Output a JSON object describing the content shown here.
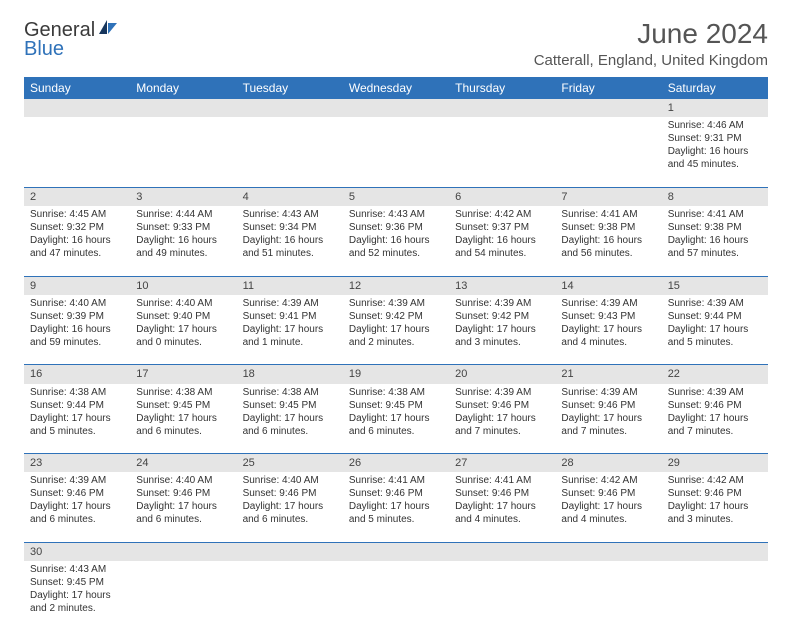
{
  "logo": {
    "text1": "General",
    "text2": "Blue"
  },
  "title": "June 2024",
  "location": "Catterall, England, United Kingdom",
  "colors": {
    "header_bg": "#2f72b9",
    "header_text": "#ffffff",
    "daynum_bg": "#e5e5e5",
    "row_border": "#2f72b9",
    "logo_blue": "#2f72b9",
    "text": "#333333"
  },
  "weekdays": [
    "Sunday",
    "Monday",
    "Tuesday",
    "Wednesday",
    "Thursday",
    "Friday",
    "Saturday"
  ],
  "weeks": [
    {
      "days": [
        null,
        null,
        null,
        null,
        null,
        null,
        {
          "n": "1",
          "sunrise": "Sunrise: 4:46 AM",
          "sunset": "Sunset: 9:31 PM",
          "daylight": "Daylight: 16 hours and 45 minutes."
        }
      ]
    },
    {
      "days": [
        {
          "n": "2",
          "sunrise": "Sunrise: 4:45 AM",
          "sunset": "Sunset: 9:32 PM",
          "daylight": "Daylight: 16 hours and 47 minutes."
        },
        {
          "n": "3",
          "sunrise": "Sunrise: 4:44 AM",
          "sunset": "Sunset: 9:33 PM",
          "daylight": "Daylight: 16 hours and 49 minutes."
        },
        {
          "n": "4",
          "sunrise": "Sunrise: 4:43 AM",
          "sunset": "Sunset: 9:34 PM",
          "daylight": "Daylight: 16 hours and 51 minutes."
        },
        {
          "n": "5",
          "sunrise": "Sunrise: 4:43 AM",
          "sunset": "Sunset: 9:36 PM",
          "daylight": "Daylight: 16 hours and 52 minutes."
        },
        {
          "n": "6",
          "sunrise": "Sunrise: 4:42 AM",
          "sunset": "Sunset: 9:37 PM",
          "daylight": "Daylight: 16 hours and 54 minutes."
        },
        {
          "n": "7",
          "sunrise": "Sunrise: 4:41 AM",
          "sunset": "Sunset: 9:38 PM",
          "daylight": "Daylight: 16 hours and 56 minutes."
        },
        {
          "n": "8",
          "sunrise": "Sunrise: 4:41 AM",
          "sunset": "Sunset: 9:38 PM",
          "daylight": "Daylight: 16 hours and 57 minutes."
        }
      ]
    },
    {
      "days": [
        {
          "n": "9",
          "sunrise": "Sunrise: 4:40 AM",
          "sunset": "Sunset: 9:39 PM",
          "daylight": "Daylight: 16 hours and 59 minutes."
        },
        {
          "n": "10",
          "sunrise": "Sunrise: 4:40 AM",
          "sunset": "Sunset: 9:40 PM",
          "daylight": "Daylight: 17 hours and 0 minutes."
        },
        {
          "n": "11",
          "sunrise": "Sunrise: 4:39 AM",
          "sunset": "Sunset: 9:41 PM",
          "daylight": "Daylight: 17 hours and 1 minute."
        },
        {
          "n": "12",
          "sunrise": "Sunrise: 4:39 AM",
          "sunset": "Sunset: 9:42 PM",
          "daylight": "Daylight: 17 hours and 2 minutes."
        },
        {
          "n": "13",
          "sunrise": "Sunrise: 4:39 AM",
          "sunset": "Sunset: 9:42 PM",
          "daylight": "Daylight: 17 hours and 3 minutes."
        },
        {
          "n": "14",
          "sunrise": "Sunrise: 4:39 AM",
          "sunset": "Sunset: 9:43 PM",
          "daylight": "Daylight: 17 hours and 4 minutes."
        },
        {
          "n": "15",
          "sunrise": "Sunrise: 4:39 AM",
          "sunset": "Sunset: 9:44 PM",
          "daylight": "Daylight: 17 hours and 5 minutes."
        }
      ]
    },
    {
      "days": [
        {
          "n": "16",
          "sunrise": "Sunrise: 4:38 AM",
          "sunset": "Sunset: 9:44 PM",
          "daylight": "Daylight: 17 hours and 5 minutes."
        },
        {
          "n": "17",
          "sunrise": "Sunrise: 4:38 AM",
          "sunset": "Sunset: 9:45 PM",
          "daylight": "Daylight: 17 hours and 6 minutes."
        },
        {
          "n": "18",
          "sunrise": "Sunrise: 4:38 AM",
          "sunset": "Sunset: 9:45 PM",
          "daylight": "Daylight: 17 hours and 6 minutes."
        },
        {
          "n": "19",
          "sunrise": "Sunrise: 4:38 AM",
          "sunset": "Sunset: 9:45 PM",
          "daylight": "Daylight: 17 hours and 6 minutes."
        },
        {
          "n": "20",
          "sunrise": "Sunrise: 4:39 AM",
          "sunset": "Sunset: 9:46 PM",
          "daylight": "Daylight: 17 hours and 7 minutes."
        },
        {
          "n": "21",
          "sunrise": "Sunrise: 4:39 AM",
          "sunset": "Sunset: 9:46 PM",
          "daylight": "Daylight: 17 hours and 7 minutes."
        },
        {
          "n": "22",
          "sunrise": "Sunrise: 4:39 AM",
          "sunset": "Sunset: 9:46 PM",
          "daylight": "Daylight: 17 hours and 7 minutes."
        }
      ]
    },
    {
      "days": [
        {
          "n": "23",
          "sunrise": "Sunrise: 4:39 AM",
          "sunset": "Sunset: 9:46 PM",
          "daylight": "Daylight: 17 hours and 6 minutes."
        },
        {
          "n": "24",
          "sunrise": "Sunrise: 4:40 AM",
          "sunset": "Sunset: 9:46 PM",
          "daylight": "Daylight: 17 hours and 6 minutes."
        },
        {
          "n": "25",
          "sunrise": "Sunrise: 4:40 AM",
          "sunset": "Sunset: 9:46 PM",
          "daylight": "Daylight: 17 hours and 6 minutes."
        },
        {
          "n": "26",
          "sunrise": "Sunrise: 4:41 AM",
          "sunset": "Sunset: 9:46 PM",
          "daylight": "Daylight: 17 hours and 5 minutes."
        },
        {
          "n": "27",
          "sunrise": "Sunrise: 4:41 AM",
          "sunset": "Sunset: 9:46 PM",
          "daylight": "Daylight: 17 hours and 4 minutes."
        },
        {
          "n": "28",
          "sunrise": "Sunrise: 4:42 AM",
          "sunset": "Sunset: 9:46 PM",
          "daylight": "Daylight: 17 hours and 4 minutes."
        },
        {
          "n": "29",
          "sunrise": "Sunrise: 4:42 AM",
          "sunset": "Sunset: 9:46 PM",
          "daylight": "Daylight: 17 hours and 3 minutes."
        }
      ]
    },
    {
      "days": [
        {
          "n": "30",
          "sunrise": "Sunrise: 4:43 AM",
          "sunset": "Sunset: 9:45 PM",
          "daylight": "Daylight: 17 hours and 2 minutes."
        },
        null,
        null,
        null,
        null,
        null,
        null
      ]
    }
  ]
}
